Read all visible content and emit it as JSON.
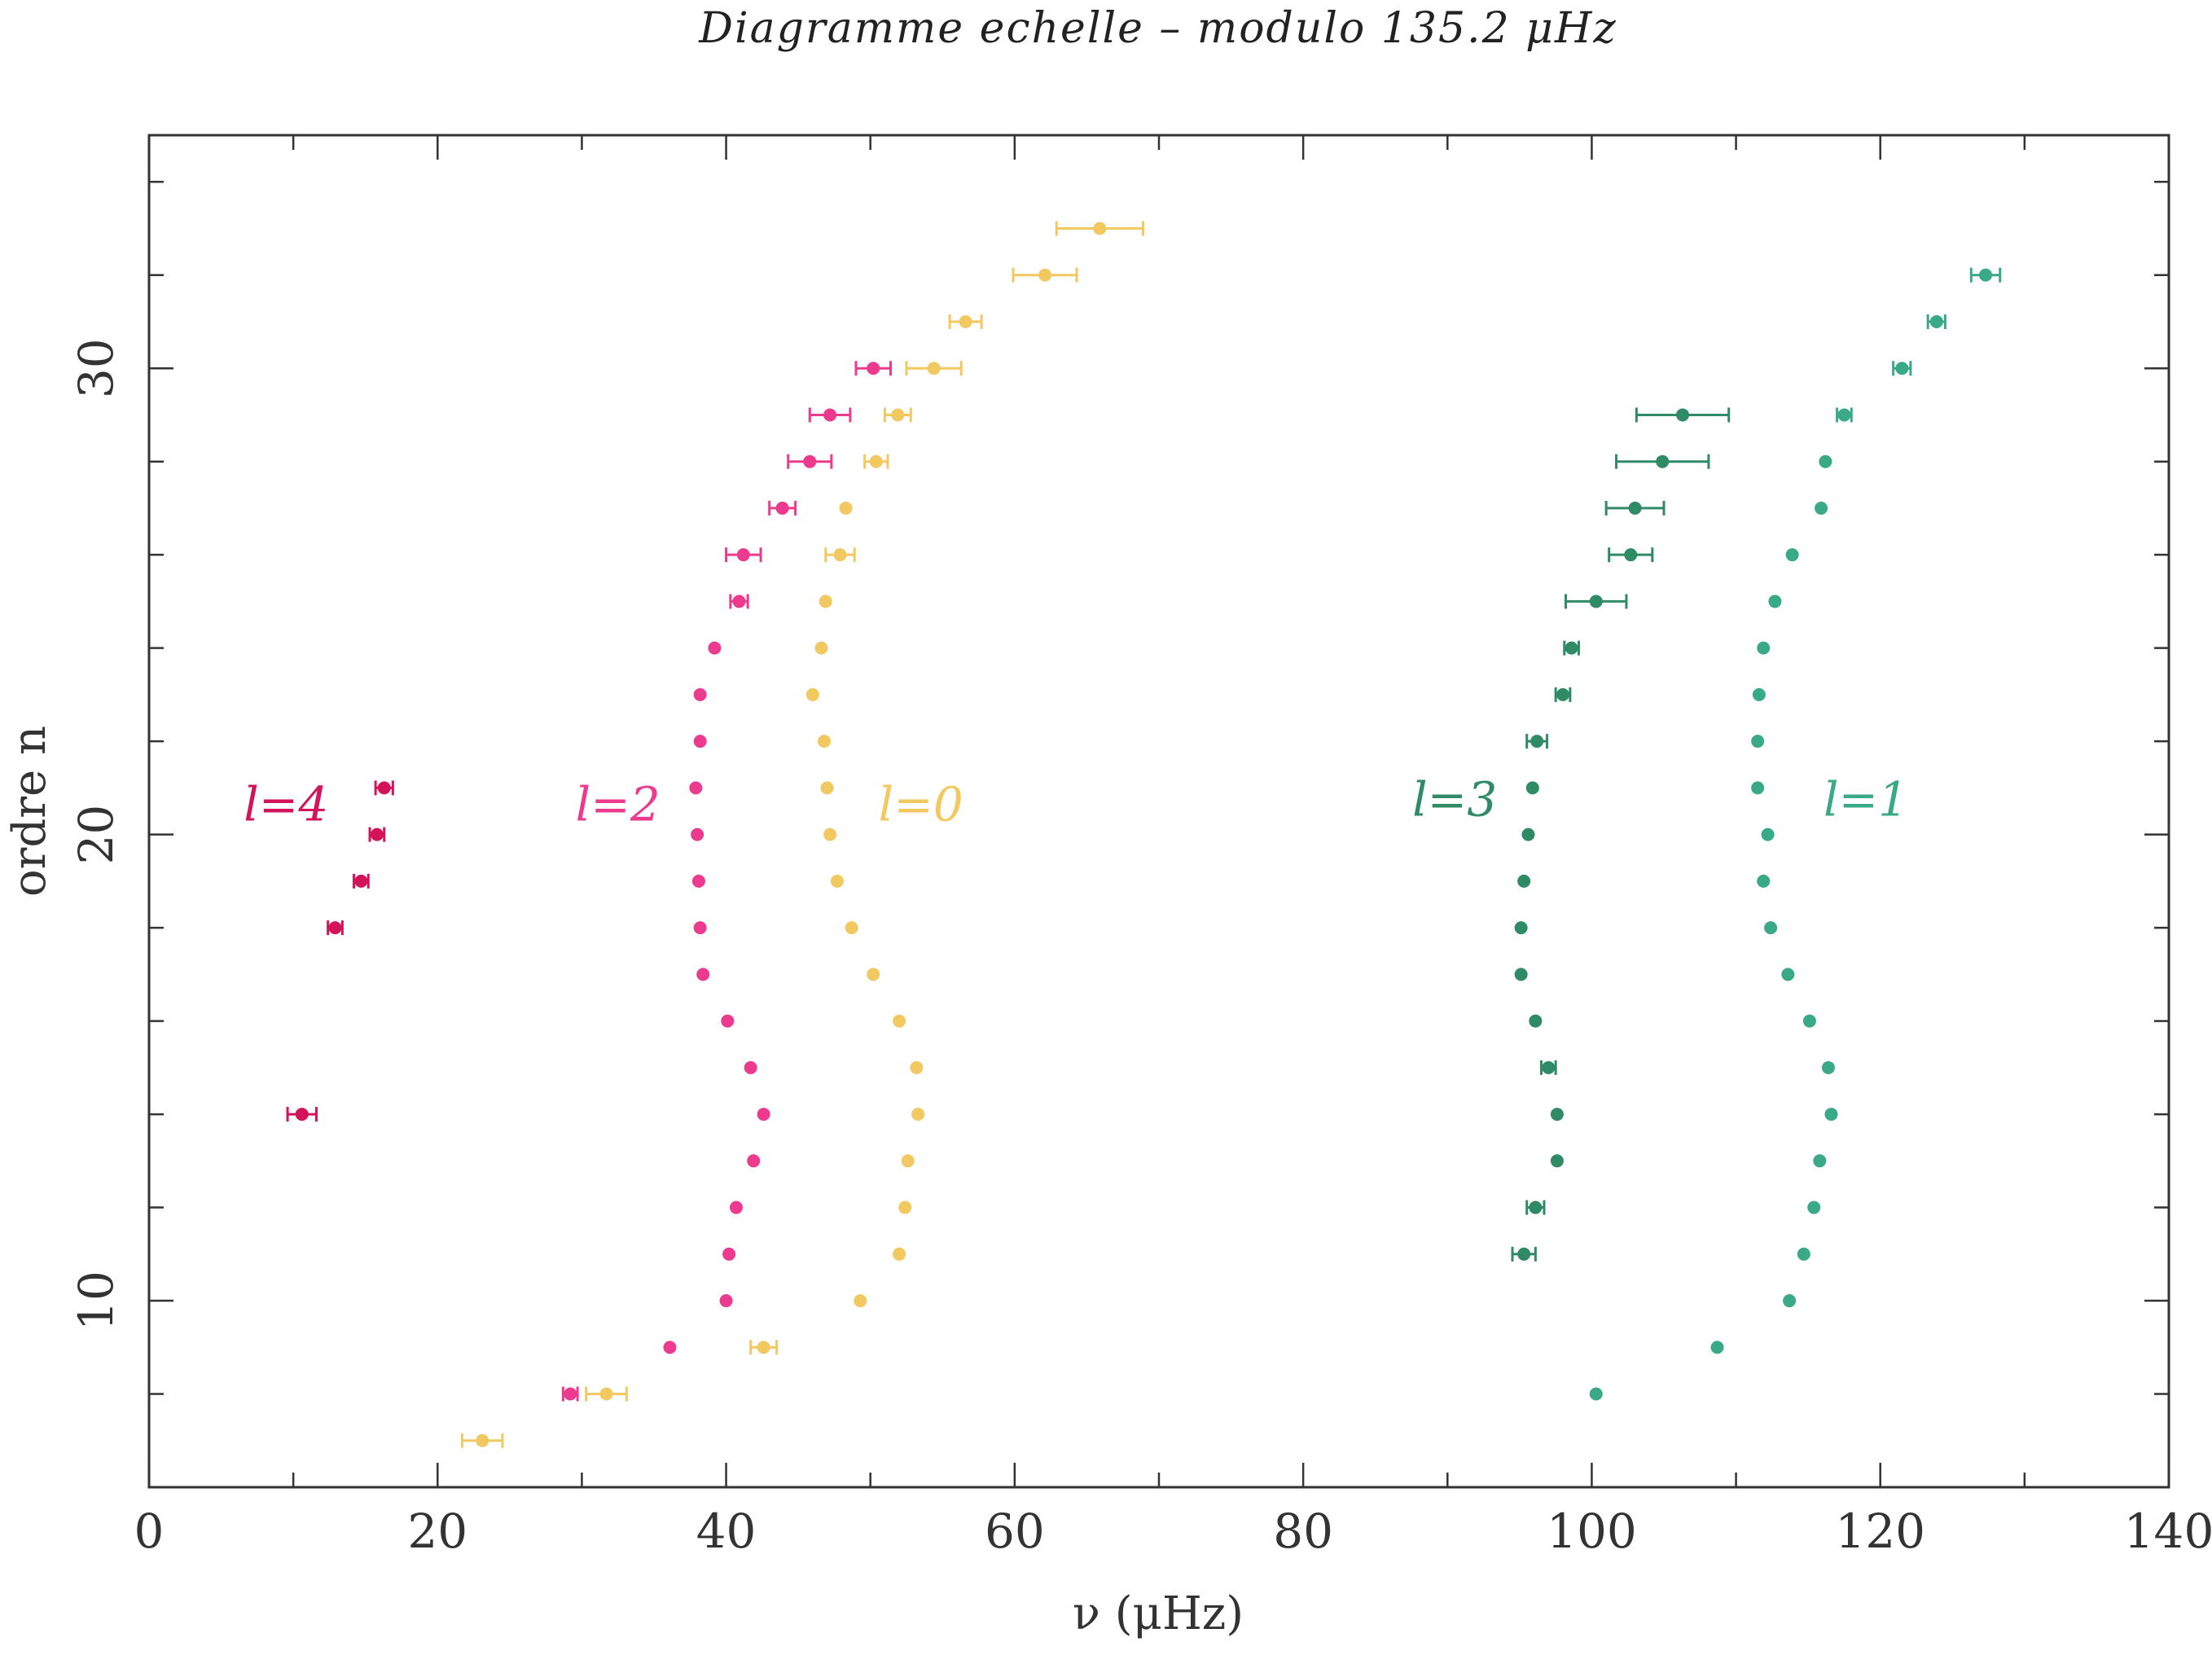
{
  "chart_data": {
    "type": "scatter",
    "title": "Diagramme echelle – modulo 135.2 μHz",
    "xlabel": "ν (μHz)",
    "ylabel": "ordre  n",
    "xlim": [
      0,
      140
    ],
    "ylim": [
      6,
      35
    ],
    "xticks": [
      "0",
      "20",
      "40",
      "60",
      "80",
      "100",
      "120",
      "140"
    ],
    "yticks": [
      "10",
      "20",
      "30"
    ],
    "grid": false,
    "legend": "inline labels",
    "series": [
      {
        "name": "l=4",
        "color": "#d4145a",
        "points": [
          {
            "x": 16.3,
            "y": 21,
            "err": 0.6
          },
          {
            "x": 15.8,
            "y": 20,
            "err": 0.5
          },
          {
            "x": 14.7,
            "y": 19,
            "err": 0.5
          },
          {
            "x": 12.9,
            "y": 18,
            "err": 0.5
          },
          {
            "x": 10.6,
            "y": 14,
            "err": 1.0
          }
        ]
      },
      {
        "name": "l=2",
        "color": "#ec3b8f",
        "points": [
          {
            "x": 50.2,
            "y": 30,
            "err": 1.2
          },
          {
            "x": 47.2,
            "y": 29,
            "err": 1.4
          },
          {
            "x": 45.8,
            "y": 28,
            "err": 1.5
          },
          {
            "x": 43.9,
            "y": 27,
            "err": 0.9
          },
          {
            "x": 41.2,
            "y": 26,
            "err": 1.2
          },
          {
            "x": 40.9,
            "y": 25,
            "err": 0.6
          },
          {
            "x": 39.2,
            "y": 24,
            "err": 0.4
          },
          {
            "x": 38.2,
            "y": 23,
            "err": 0.3
          },
          {
            "x": 38.2,
            "y": 22,
            "err": 0.3
          },
          {
            "x": 37.9,
            "y": 21,
            "err": 0.3
          },
          {
            "x": 38.0,
            "y": 20,
            "err": 0.3
          },
          {
            "x": 38.1,
            "y": 19,
            "err": 0.3
          },
          {
            "x": 38.2,
            "y": 18,
            "err": 0.3
          },
          {
            "x": 38.4,
            "y": 17,
            "err": 0.3
          },
          {
            "x": 40.1,
            "y": 16,
            "err": 0.3
          },
          {
            "x": 41.7,
            "y": 15,
            "err": 0.3
          },
          {
            "x": 42.6,
            "y": 14,
            "err": 0.3
          },
          {
            "x": 41.9,
            "y": 13,
            "err": 0.3
          },
          {
            "x": 40.7,
            "y": 12,
            "err": 0.3
          },
          {
            "x": 40.2,
            "y": 11,
            "err": 0.3
          },
          {
            "x": 40.0,
            "y": 10,
            "err": 0.3
          },
          {
            "x": 36.1,
            "y": 9,
            "err": 0.3
          },
          {
            "x": 29.2,
            "y": 8,
            "err": 0.5
          }
        ]
      },
      {
        "name": "l=0",
        "color": "#f2c860",
        "points": [
          {
            "x": 65.9,
            "y": 33,
            "err": 3.0
          },
          {
            "x": 62.1,
            "y": 32,
            "err": 2.2
          },
          {
            "x": 56.6,
            "y": 31,
            "err": 1.1
          },
          {
            "x": 54.4,
            "y": 30,
            "err": 1.9
          },
          {
            "x": 51.9,
            "y": 29,
            "err": 0.9
          },
          {
            "x": 50.4,
            "y": 28,
            "err": 0.8
          },
          {
            "x": 48.3,
            "y": 27,
            "err": 0.3
          },
          {
            "x": 47.9,
            "y": 26,
            "err": 1.0
          },
          {
            "x": 46.9,
            "y": 25,
            "err": 0.3
          },
          {
            "x": 46.6,
            "y": 24,
            "err": 0.3
          },
          {
            "x": 46.0,
            "y": 23,
            "err": 0.3
          },
          {
            "x": 46.8,
            "y": 22,
            "err": 0.3
          },
          {
            "x": 47.0,
            "y": 21,
            "err": 0.3
          },
          {
            "x": 47.2,
            "y": 20,
            "err": 0.3
          },
          {
            "x": 47.7,
            "y": 19,
            "err": 0.3
          },
          {
            "x": 48.7,
            "y": 18,
            "err": 0.3
          },
          {
            "x": 50.2,
            "y": 17,
            "err": 0.3
          },
          {
            "x": 52.0,
            "y": 16,
            "err": 0.3
          },
          {
            "x": 53.2,
            "y": 15,
            "err": 0.3
          },
          {
            "x": 53.3,
            "y": 14,
            "err": 0.3
          },
          {
            "x": 52.6,
            "y": 13,
            "err": 0.3
          },
          {
            "x": 52.4,
            "y": 12,
            "err": 0.3
          },
          {
            "x": 52.0,
            "y": 11,
            "err": 0.3
          },
          {
            "x": 49.3,
            "y": 10,
            "err": 0.3
          },
          {
            "x": 42.6,
            "y": 9,
            "err": 0.9
          },
          {
            "x": 31.7,
            "y": 8,
            "err": 1.4
          },
          {
            "x": 23.1,
            "y": 7,
            "err": 1.4
          }
        ]
      },
      {
        "name": "l=3",
        "color": "#2f8a66",
        "points": [
          {
            "x": 106.3,
            "y": 29,
            "err": 3.2
          },
          {
            "x": 104.9,
            "y": 28,
            "err": 3.2
          },
          {
            "x": 103.0,
            "y": 27,
            "err": 2.0
          },
          {
            "x": 102.7,
            "y": 26,
            "err": 1.5
          },
          {
            "x": 100.3,
            "y": 25,
            "err": 2.1
          },
          {
            "x": 98.6,
            "y": 24,
            "err": 0.5
          },
          {
            "x": 98.0,
            "y": 23,
            "err": 0.5
          },
          {
            "x": 96.2,
            "y": 22,
            "err": 0.7
          },
          {
            "x": 95.9,
            "y": 21,
            "err": 0.3
          },
          {
            "x": 95.6,
            "y": 20,
            "err": 0.3
          },
          {
            "x": 95.3,
            "y": 19,
            "err": 0.3
          },
          {
            "x": 95.1,
            "y": 18,
            "err": 0.3
          },
          {
            "x": 95.1,
            "y": 17,
            "err": 0.4
          },
          {
            "x": 96.1,
            "y": 16,
            "err": 0.3
          },
          {
            "x": 97.0,
            "y": 15,
            "err": 0.5
          },
          {
            "x": 97.6,
            "y": 14,
            "err": 0.3
          },
          {
            "x": 97.6,
            "y": 13,
            "err": 0.3
          },
          {
            "x": 96.1,
            "y": 12,
            "err": 0.6
          },
          {
            "x": 95.3,
            "y": 11,
            "err": 0.8
          }
        ]
      },
      {
        "name": "l=1",
        "color": "#3aa985",
        "points": [
          {
            "x": 127.3,
            "y": 32,
            "err": 1.0
          },
          {
            "x": 123.9,
            "y": 31,
            "err": 0.6
          },
          {
            "x": 121.5,
            "y": 30,
            "err": 0.6
          },
          {
            "x": 117.5,
            "y": 29,
            "err": 0.5
          },
          {
            "x": 116.2,
            "y": 28,
            "err": 0.4
          },
          {
            "x": 115.9,
            "y": 27,
            "err": 0.3
          },
          {
            "x": 113.9,
            "y": 26,
            "err": 0.3
          },
          {
            "x": 112.7,
            "y": 25,
            "err": 0.3
          },
          {
            "x": 111.9,
            "y": 24,
            "err": 0.3
          },
          {
            "x": 111.6,
            "y": 23,
            "err": 0.3
          },
          {
            "x": 111.5,
            "y": 22,
            "err": 0.3
          },
          {
            "x": 111.5,
            "y": 21,
            "err": 0.3
          },
          {
            "x": 112.2,
            "y": 20,
            "err": 0.3
          },
          {
            "x": 111.9,
            "y": 19,
            "err": 0.3
          },
          {
            "x": 112.4,
            "y": 18,
            "err": 0.3
          },
          {
            "x": 113.6,
            "y": 17,
            "err": 0.3
          },
          {
            "x": 115.1,
            "y": 16,
            "err": 0.3
          },
          {
            "x": 116.4,
            "y": 15,
            "err": 0.3
          },
          {
            "x": 116.6,
            "y": 14,
            "err": 0.3
          },
          {
            "x": 115.8,
            "y": 13,
            "err": 0.3
          },
          {
            "x": 115.4,
            "y": 12,
            "err": 0.3
          },
          {
            "x": 114.7,
            "y": 11,
            "err": 0.3
          },
          {
            "x": 113.7,
            "y": 10,
            "err": 0.3
          },
          {
            "x": 108.7,
            "y": 9,
            "err": 0.3
          },
          {
            "x": 100.3,
            "y": 8,
            "err": 0.3
          }
        ]
      }
    ]
  }
}
